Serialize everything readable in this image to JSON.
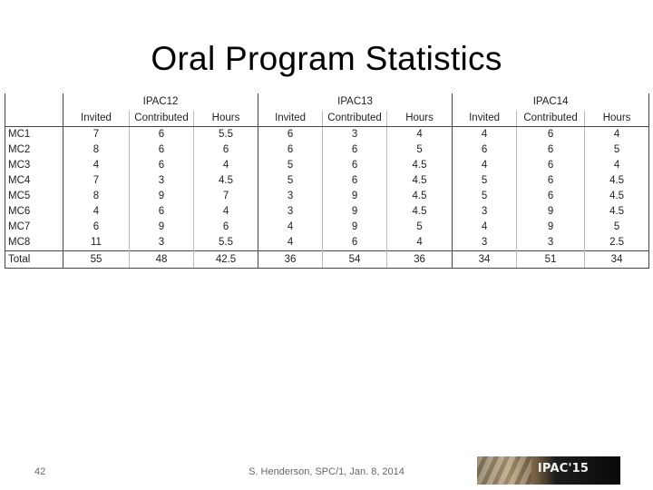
{
  "title": "Oral Program Statistics",
  "table": {
    "conferences": [
      "IPAC12",
      "IPAC13",
      "IPAC14"
    ],
    "columns": [
      "Invited",
      "Contributed",
      "Hours"
    ],
    "rows": [
      {
        "label": "MC1",
        "values": [
          "7",
          "6",
          "5.5",
          "6",
          "3",
          "4",
          "4",
          "6",
          "4"
        ]
      },
      {
        "label": "MC2",
        "values": [
          "8",
          "6",
          "6",
          "6",
          "6",
          "5",
          "6",
          "6",
          "5"
        ]
      },
      {
        "label": "MC3",
        "values": [
          "4",
          "6",
          "4",
          "5",
          "6",
          "4.5",
          "4",
          "6",
          "4"
        ]
      },
      {
        "label": "MC4",
        "values": [
          "7",
          "3",
          "4.5",
          "5",
          "6",
          "4.5",
          "5",
          "6",
          "4.5"
        ]
      },
      {
        "label": "MC5",
        "values": [
          "8",
          "9",
          "7",
          "3",
          "9",
          "4.5",
          "5",
          "6",
          "4.5"
        ]
      },
      {
        "label": "MC6",
        "values": [
          "4",
          "6",
          "4",
          "3",
          "9",
          "4.5",
          "3",
          "9",
          "4.5"
        ]
      },
      {
        "label": "MC7",
        "values": [
          "6",
          "9",
          "6",
          "4",
          "9",
          "5",
          "4",
          "9",
          "5"
        ]
      },
      {
        "label": "MC8",
        "values": [
          "11",
          "3",
          "5.5",
          "4",
          "6",
          "4",
          "3",
          "3",
          "2.5"
        ]
      }
    ],
    "total": {
      "label": "Total",
      "values": [
        "55",
        "48",
        "42.5",
        "36",
        "54",
        "36",
        "34",
        "51",
        "34"
      ]
    }
  },
  "footer": {
    "slide_number": "42",
    "citation": "S. Henderson, SPC/1, Jan. 8, 2014",
    "logo_text": "IPAC'15"
  }
}
